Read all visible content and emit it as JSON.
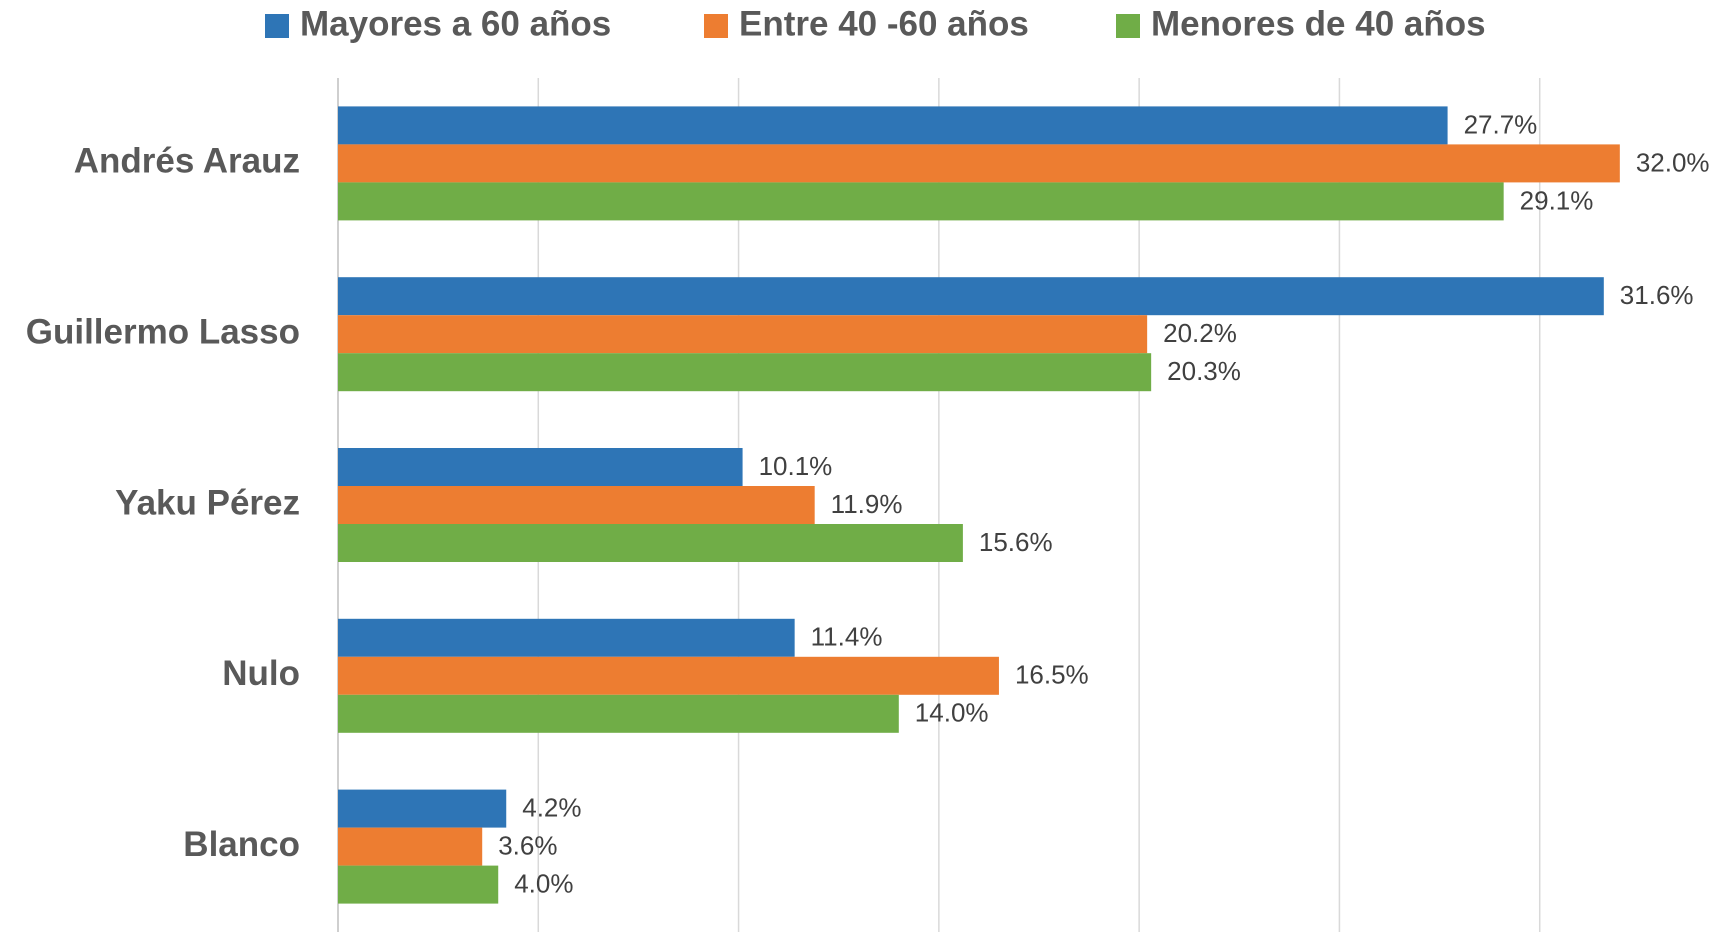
{
  "chart_data": {
    "type": "bar",
    "orientation": "horizontal",
    "categories": [
      "Andrés Arauz",
      "Guillermo Lasso",
      "Yaku Pérez",
      "Nulo",
      "Blanco"
    ],
    "series": [
      {
        "name": "Mayores a 60 años",
        "color": "#2e75b6",
        "values": [
          27.7,
          31.6,
          10.1,
          11.4,
          4.2
        ],
        "value_labels": [
          "27.7%",
          "31.6%",
          "10.1%",
          "11.4%",
          "4.2%"
        ]
      },
      {
        "name": "Entre 40 -60 años",
        "color": "#ed7d31",
        "values": [
          32.0,
          20.2,
          11.9,
          16.5,
          3.6
        ],
        "value_labels": [
          "32.0%",
          "20.2%",
          "11.9%",
          "16.5%",
          "3.6%"
        ]
      },
      {
        "name": "Menores de 40 años",
        "color": "#70ad47",
        "values": [
          29.1,
          20.3,
          15.6,
          14.0,
          4.0
        ],
        "value_labels": [
          "29.1%",
          "20.3%",
          "15.6%",
          "14.0%",
          "4.0%"
        ]
      }
    ],
    "xlim": [
      0,
      35
    ],
    "xticks": [
      0,
      5,
      10,
      15,
      20,
      25,
      30
    ],
    "grid": true,
    "legend": "top"
  }
}
